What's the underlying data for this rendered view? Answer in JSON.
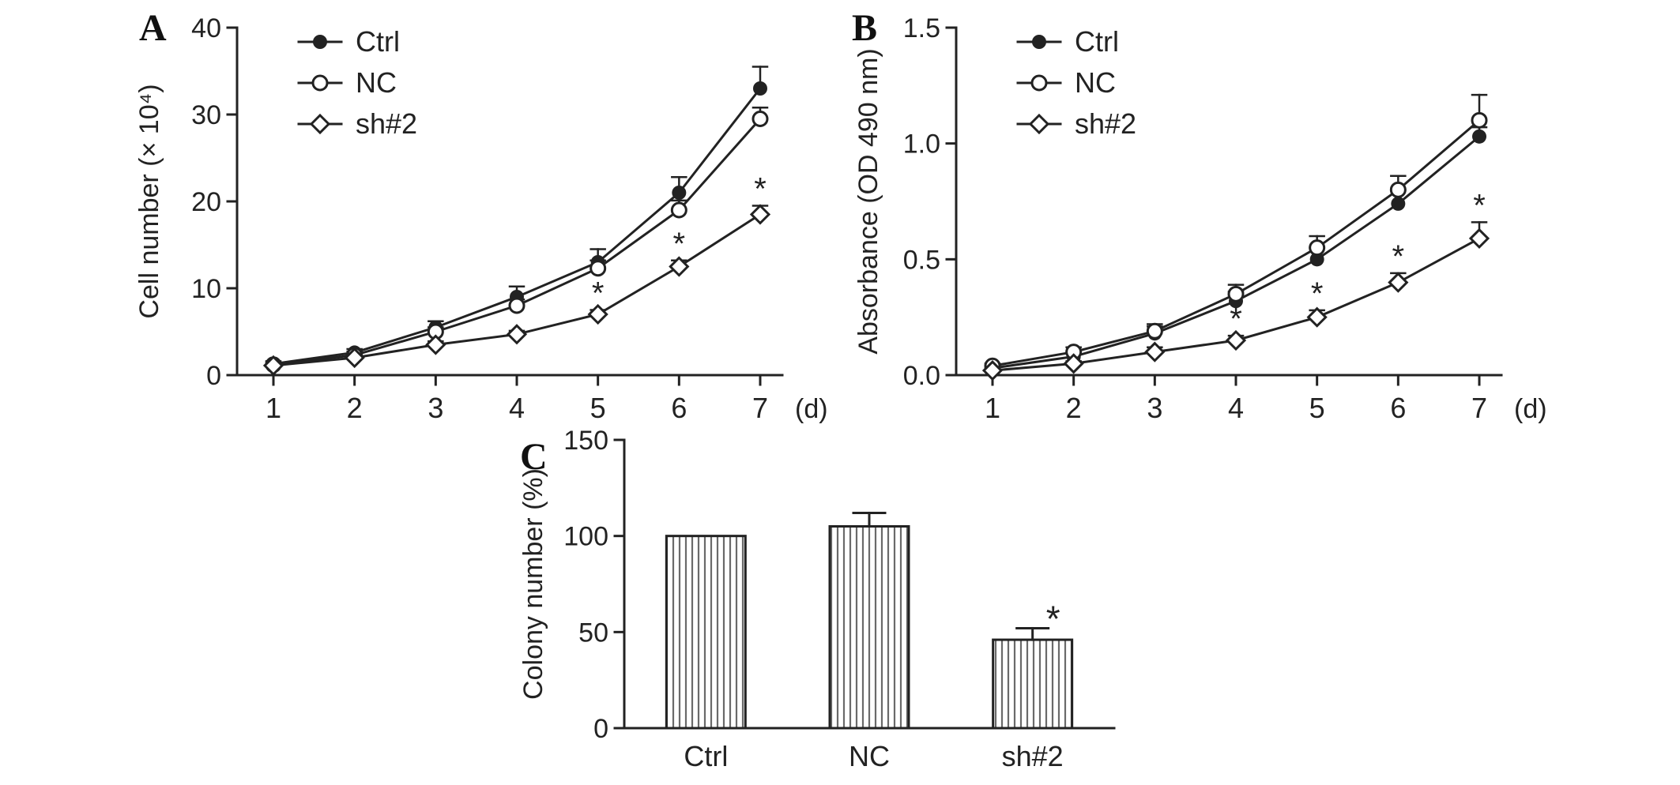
{
  "figure": {
    "background": "#ffffff",
    "ink": "#222222",
    "hatch_color": "#6a6a6a"
  },
  "panels": [
    {
      "label": "A"
    },
    {
      "label": "B"
    },
    {
      "label": "C"
    }
  ],
  "chart_data": [
    {
      "type": "line",
      "panel": "A",
      "title": "",
      "ylabel": "Cell number (× 10⁴)",
      "xlabel": "(d)",
      "x": [
        1,
        2,
        3,
        4,
        5,
        6,
        7
      ],
      "ylim": [
        0,
        40
      ],
      "yticks": [
        0,
        10,
        20,
        30,
        40
      ],
      "ytick_labels": [
        "0",
        "10",
        "20",
        "30",
        "40"
      ],
      "grid": false,
      "legend_position": "top-left-inside",
      "sig_marker": "*",
      "series": [
        {
          "name": "Ctrl",
          "marker": "filled-circle",
          "values": [
            1.3,
            2.6,
            5.5,
            9,
            13,
            21,
            33
          ],
          "errors": [
            0.3,
            0.4,
            0.7,
            1.2,
            1.5,
            1.8,
            2.5
          ],
          "asterisks": []
        },
        {
          "name": "NC",
          "marker": "open-circle",
          "values": [
            1.2,
            2.3,
            5,
            8,
            12.3,
            19,
            29.5
          ],
          "errors": [
            0.3,
            0.4,
            0.5,
            0.7,
            0.9,
            1.1,
            1.3
          ],
          "asterisks": []
        },
        {
          "name": "sh#2",
          "marker": "open-diamond",
          "values": [
            1.1,
            2,
            3.5,
            4.7,
            7,
            12.5,
            18.5
          ],
          "errors": [
            0.2,
            0.3,
            0.4,
            0.4,
            0.5,
            0.7,
            1.0
          ],
          "asterisks": [
            5,
            6,
            7
          ]
        }
      ]
    },
    {
      "type": "line",
      "panel": "B",
      "title": "",
      "ylabel": "Absorbance (OD 490 nm)",
      "xlabel": "(d)",
      "x": [
        1,
        2,
        3,
        4,
        5,
        6,
        7
      ],
      "ylim": [
        0,
        1.5
      ],
      "yticks": [
        0,
        0.5,
        1.0,
        1.5
      ],
      "ytick_labels": [
        "0.0",
        "0.5",
        "1.0",
        "1.5"
      ],
      "grid": false,
      "legend_position": "top-left-inside",
      "sig_marker": "*",
      "series": [
        {
          "name": "Ctrl",
          "marker": "filled-circle",
          "values": [
            0.03,
            0.08,
            0.18,
            0.32,
            0.5,
            0.74,
            1.03
          ],
          "errors": [
            0.01,
            0.02,
            0.03,
            0.04,
            0.05,
            0.06,
            0.04
          ],
          "asterisks": []
        },
        {
          "name": "NC",
          "marker": "open-circle",
          "values": [
            0.04,
            0.1,
            0.19,
            0.35,
            0.55,
            0.8,
            1.1
          ],
          "errors": [
            0.01,
            0.02,
            0.03,
            0.04,
            0.05,
            0.06,
            0.11
          ],
          "asterisks": []
        },
        {
          "name": "sh#2",
          "marker": "open-diamond",
          "values": [
            0.02,
            0.05,
            0.1,
            0.15,
            0.25,
            0.4,
            0.59
          ],
          "errors": [
            0.01,
            0.01,
            0.02,
            0.02,
            0.03,
            0.04,
            0.07
          ],
          "asterisks": [
            4,
            5,
            6,
            7
          ]
        }
      ]
    },
    {
      "type": "bar",
      "panel": "C",
      "title": "",
      "ylabel": "Colony number (%)",
      "xlabel": "",
      "categories": [
        "Ctrl",
        "NC",
        "sh#2"
      ],
      "values": [
        100,
        105,
        46
      ],
      "errors": [
        0,
        7,
        6
      ],
      "ylim": [
        0,
        150
      ],
      "yticks": [
        0,
        50,
        100,
        150
      ],
      "ytick_labels": [
        "0",
        "50",
        "100",
        "150"
      ],
      "grid": false,
      "bar_fill": "vertical-hatch",
      "sig_marker": "*",
      "asterisk_on": [
        "sh#2"
      ]
    }
  ]
}
